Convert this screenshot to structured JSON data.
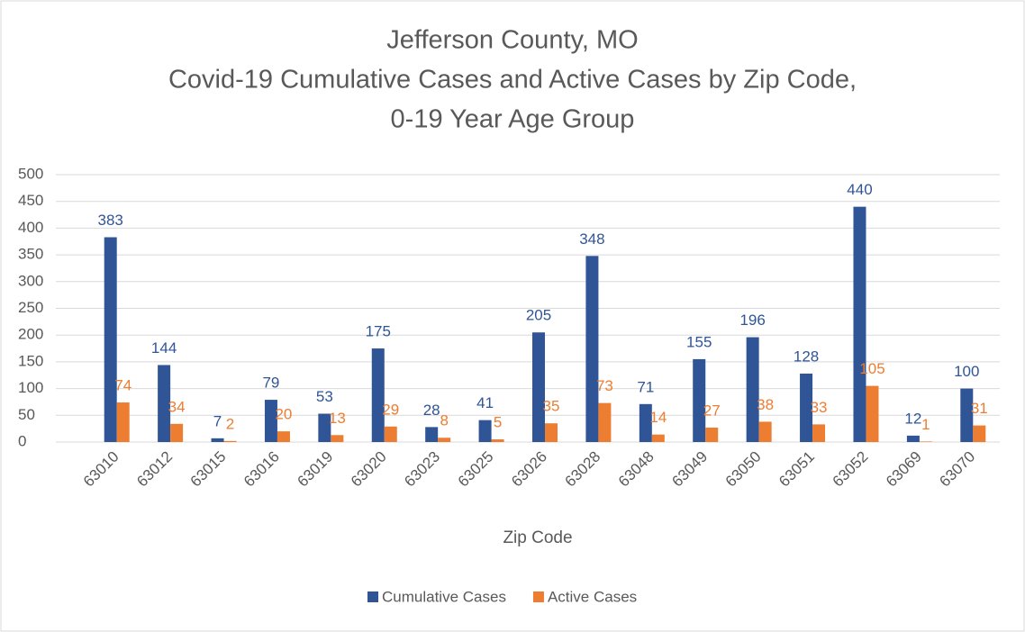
{
  "chart_data": {
    "type": "bar",
    "title": [
      "Jefferson County, MO",
      "Covid-19 Cumulative Cases and Active Cases by Zip Code,",
      "0-19 Year Age Group"
    ],
    "xlabel": "Zip Code",
    "categories": [
      "63010",
      "63012",
      "63015",
      "63016",
      "63019",
      "63020",
      "63023",
      "63025",
      "63026",
      "63028",
      "63048",
      "63049",
      "63050",
      "63051",
      "63052",
      "63069",
      "63070"
    ],
    "series": [
      {
        "name": "Cumulative Cases",
        "color": "#2f5597",
        "values": [
          383,
          144,
          7,
          79,
          53,
          175,
          28,
          41,
          205,
          348,
          71,
          155,
          196,
          128,
          440,
          12,
          100
        ]
      },
      {
        "name": "Active Cases",
        "color": "#ed7d31",
        "values": [
          74,
          34,
          2,
          20,
          13,
          29,
          8,
          5,
          35,
          73,
          14,
          27,
          38,
          33,
          105,
          1,
          31
        ]
      }
    ],
    "ylim": [
      0,
      500
    ],
    "yticks": [
      0,
      50,
      100,
      150,
      200,
      250,
      300,
      350,
      400,
      450,
      500
    ],
    "grid": true,
    "legend": "bottom"
  }
}
